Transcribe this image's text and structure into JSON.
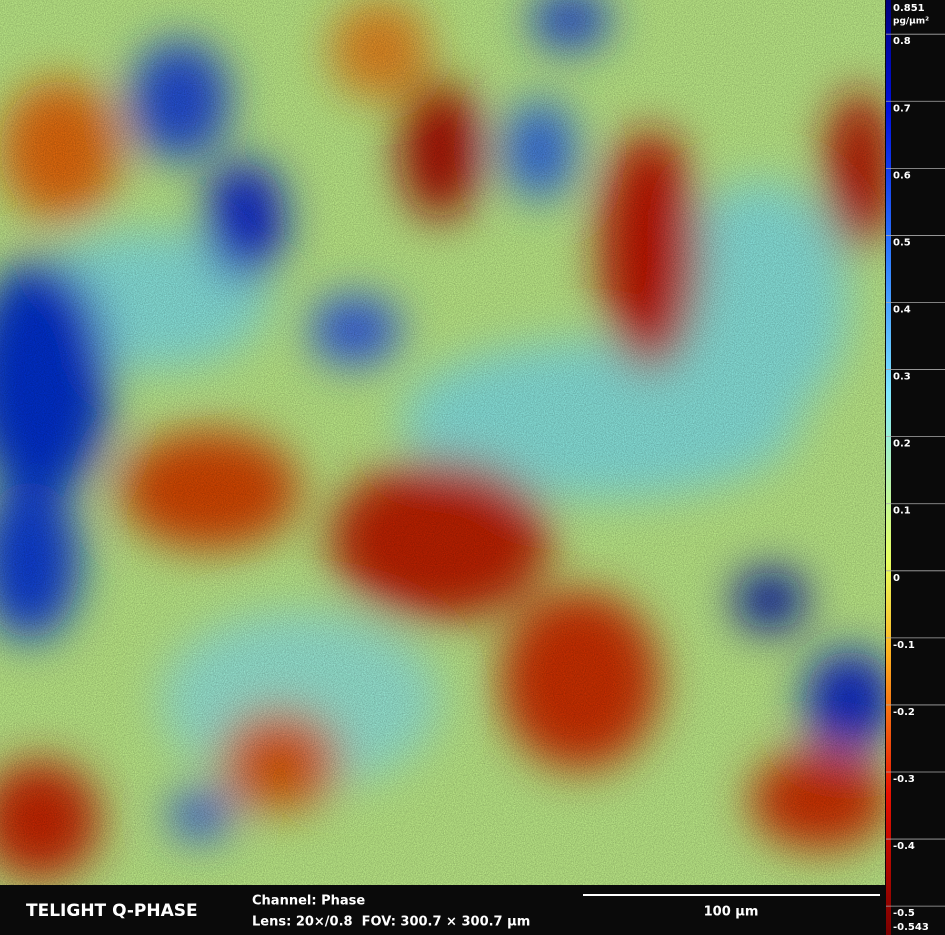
{
  "colorbar": {
    "max": 0.851,
    "unit": "pg/μm²",
    "min": -0.543,
    "ticks": [
      0.8,
      0.7,
      0.6,
      0.5,
      0.4,
      0.3,
      0.2,
      0.1,
      0,
      -0.1,
      -0.2,
      -0.3,
      -0.4,
      -0.5
    ]
  },
  "footer": {
    "brand": "TELIGHT Q-PHASE",
    "channel": "Channel: Phase",
    "lens": "Lens: 20×/0.8  FOV: 300.7 × 300.7 μm",
    "scale_bar": "100 μm"
  }
}
